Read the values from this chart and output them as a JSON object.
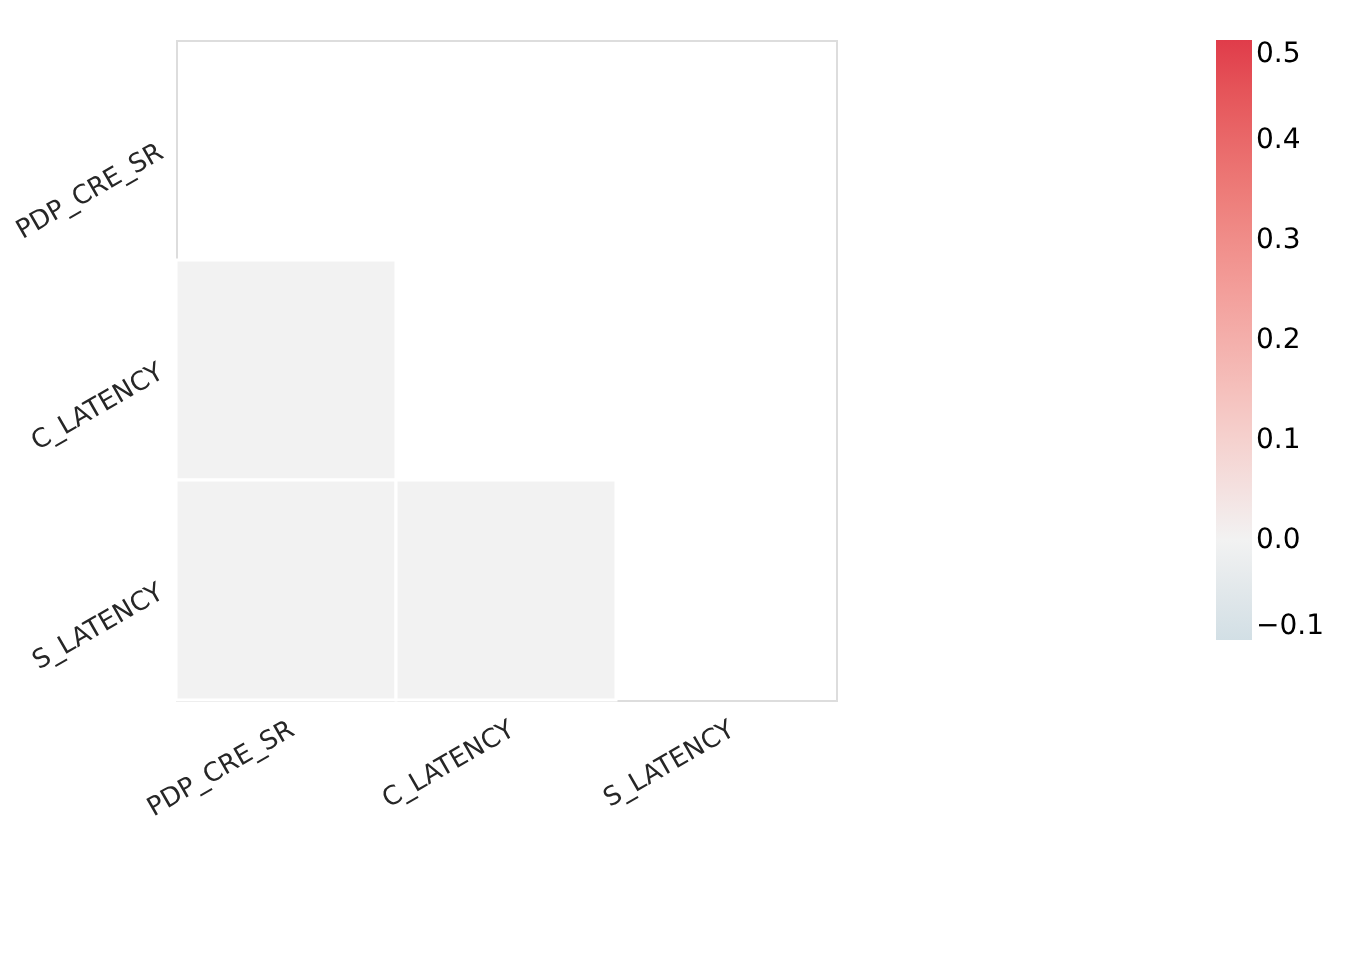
{
  "chart_data": {
    "type": "heatmap",
    "categories": [
      "PDP_CRE_SR",
      "C_LATENCY",
      "S_LATENCY"
    ],
    "y_categories": [
      "PDP_CRE_SR",
      "C_LATENCY",
      "S_LATENCY"
    ],
    "cells": [
      [
        null,
        null,
        null
      ],
      [
        0.0,
        null,
        null
      ],
      [
        0.0,
        0.0,
        null
      ]
    ],
    "clim": [
      -0.1,
      0.5
    ],
    "cticks": [
      -0.1,
      {
        "value": 0,
        "label": "0.0"
      },
      0.1,
      0.2,
      0.3,
      0.4,
      0.5
    ]
  }
}
